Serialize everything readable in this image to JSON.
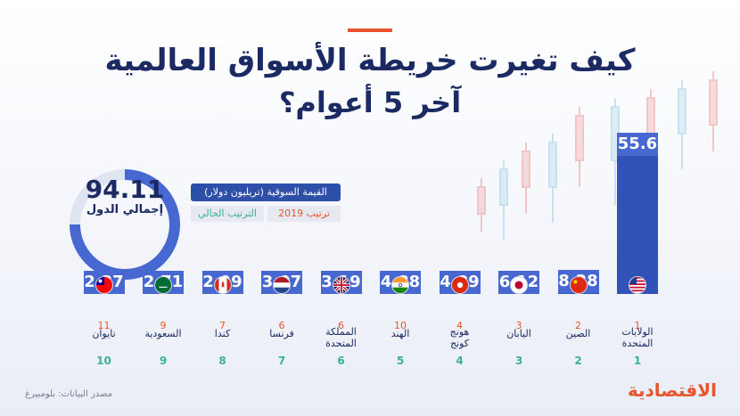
{
  "header": {
    "title_line1": "كيف تغيرت خريطة الأسواق العالمية",
    "title_line2": "آخر 5 أعوام؟"
  },
  "total": {
    "value": "94.11",
    "label": "إجمالي الدول"
  },
  "legend": {
    "market_value": "القيمة السوقية (تريليون دولار)",
    "rank_2019": "ترتيب 2019",
    "rank_current": "الترتيب الحالي"
  },
  "colors": {
    "bar": "#3352b8",
    "bar_top": "#4768d1",
    "accent": "#e8552c",
    "current_rank": "#3bb28a"
  },
  "chart_data": {
    "type": "bar",
    "title": "كيف تغيرت خريطة الأسواق العالمية آخر 5 أعوام؟",
    "ylabel": "القيمة السوقية (تريليون دولار)",
    "ylim": [
      0,
      56
    ],
    "categories": [
      "الولايات المتحدة",
      "الصين",
      "اليابان",
      "هونج كونج",
      "الهند",
      "المملكة المتحدة",
      "فرنسا",
      "كندا",
      "السعودية",
      "تايوان"
    ],
    "values": [
      55.6,
      8.28,
      6.12,
      4.89,
      4.88,
      3.19,
      3.07,
      2.99,
      2.71,
      2.37
    ],
    "value_labels": [
      "55.6",
      "8.28",
      "6.12",
      "4.89",
      "4.88",
      "3.19",
      "3.07",
      "2.99",
      "2.71",
      "2.37"
    ],
    "country_lines": [
      [
        "الولايات",
        "المتحدة"
      ],
      [
        "الصين"
      ],
      [
        "اليابان"
      ],
      [
        "هونج",
        "كونج"
      ],
      [
        "الهند"
      ],
      [
        "المملكة",
        "المتحدة"
      ],
      [
        "فرنسا"
      ],
      [
        "كندا"
      ],
      [
        "السعودية"
      ],
      [
        "تايوان"
      ]
    ],
    "rank_2019": [
      "1",
      "2",
      "3",
      "4",
      "10",
      "6",
      "6",
      "7",
      "9",
      "11"
    ],
    "rank_current": [
      "1",
      "2",
      "3",
      "4",
      "5",
      "6",
      "7",
      "8",
      "9",
      "10"
    ],
    "flags": [
      "us-flag-icon",
      "cn-flag-icon",
      "jp-flag-icon",
      "hk-flag-icon",
      "in-flag-icon",
      "uk-flag-icon",
      "fr-flag-icon",
      "ca-flag-icon",
      "sa-flag-icon",
      "tw-flag-icon"
    ]
  },
  "footer": {
    "source": "مصدر البيانات: بلومبيرغ",
    "logo": "الاقتصادية"
  }
}
